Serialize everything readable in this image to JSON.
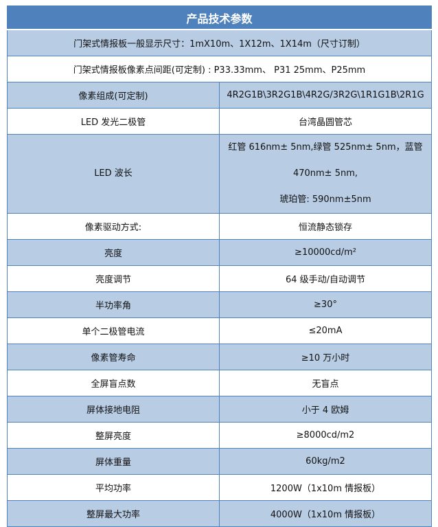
{
  "title": "产品技术参数",
  "full_rows": [
    "门架式情报板一般显示尺寸：1mX10m、1X12m、1X14m（尺寸订制）",
    "门架式情报板像素点间距(可定制) : P33.33mm、 P31 25mm、P25mm"
  ],
  "rows": [
    {
      "label": "像素组成(可定制)",
      "value": "4R2G1B\\3R2G1B\\4R2G/3R2G\\1R1G1B\\2R1G"
    },
    {
      "label": "LED 发光二极管",
      "value": "台湾晶圆管芯"
    },
    {
      "label": "LED 波长",
      "value": "红管 616nm±  5nm,绿管 525nm±  5nm，蓝管 470nm±  5nm,",
      "value2": "琥珀管: 590nm±5nm"
    },
    {
      "label": "像素驱动方式:",
      "value": "恒流静态锁存"
    },
    {
      "label": "亮度",
      "value": "≥10000cd/m²"
    },
    {
      "label": "亮度调节",
      "value": "64 级手动/自动调节"
    },
    {
      "label": "半功率角",
      "value": "≥30°"
    },
    {
      "label": "单个二极管电流",
      "value": "≤20mA"
    },
    {
      "label": "像素管寿命",
      "value": "≥10 万小时"
    },
    {
      "label": "全屏盲点数",
      "value": "无盲点"
    },
    {
      "label": "屏体接地电阻",
      "value": "小于 4 欧姆"
    },
    {
      "label": "整屏亮度",
      "value": "≥8000cd/m2"
    },
    {
      "label": "屏体重量",
      "value": "60kg/m2"
    },
    {
      "label": "平均功率",
      "value": "1200W（1x10m 情报板）"
    },
    {
      "label": "整屏最大功率",
      "value": "4000W（1x10m 情报板）"
    }
  ],
  "colors": {
    "header": "#4f81bd",
    "row_alt": "#b8cce4",
    "border": "#4f81bd"
  }
}
